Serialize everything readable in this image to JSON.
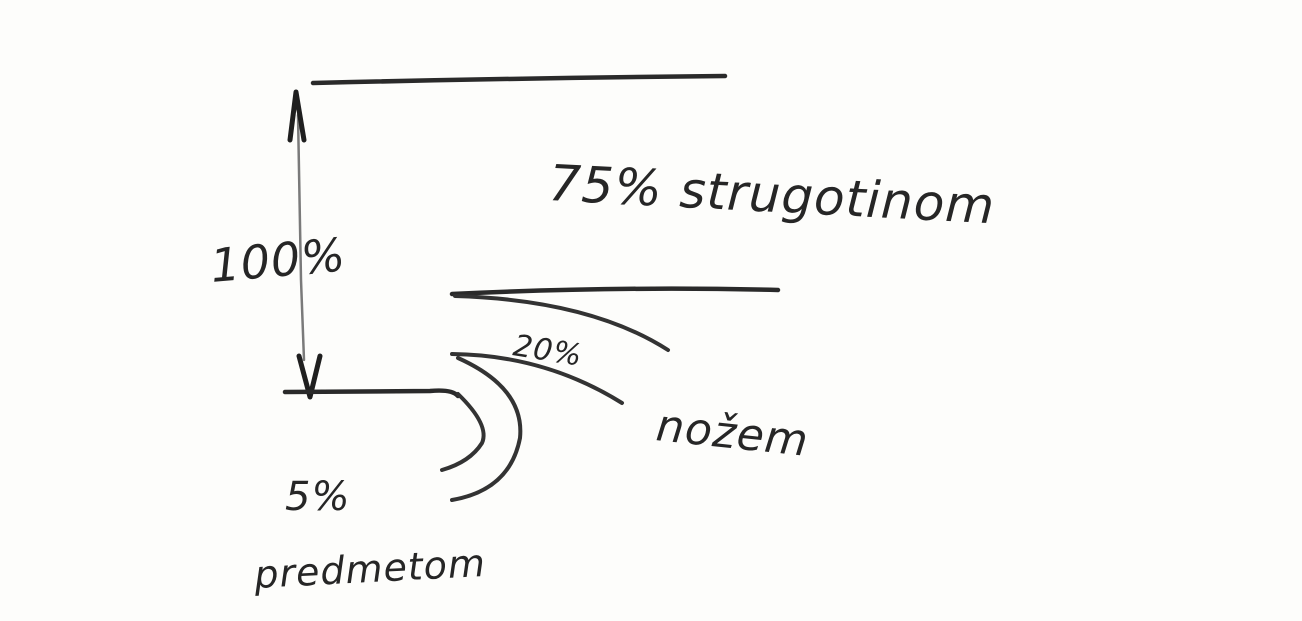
{
  "diagram": {
    "labels": {
      "total": "100%",
      "chips_share": "75% strugotinom",
      "tool_share": "20%",
      "tool_name": "nožem",
      "workpiece_share": "5%",
      "workpiece_name": "predmetom"
    },
    "ink_color": "#2a2a2a",
    "paper_color": "#fdfdfb"
  }
}
